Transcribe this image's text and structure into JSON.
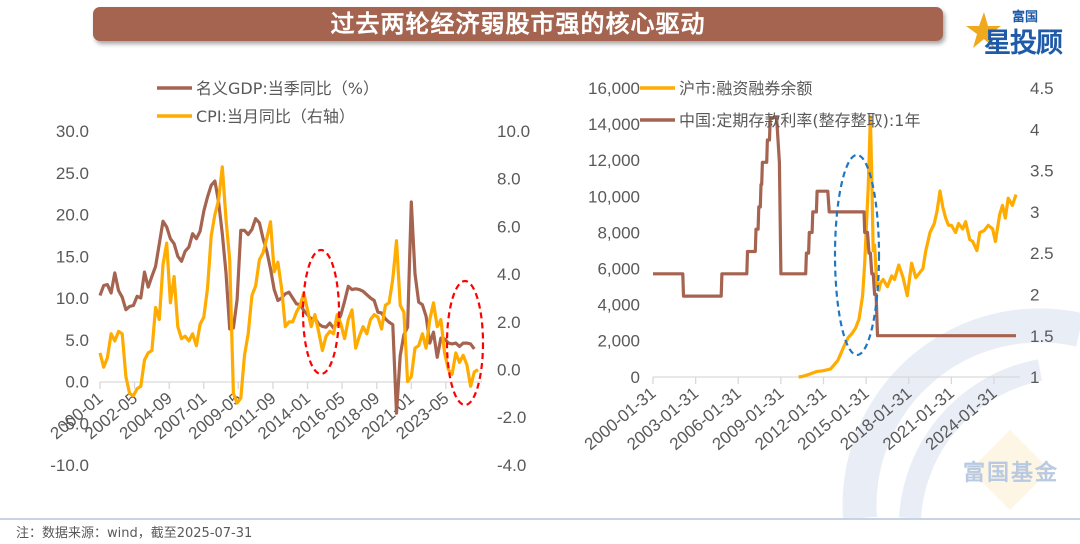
{
  "header": {
    "title": "过去两轮经济弱股市强的核心驱动",
    "logo_top": "富国",
    "logo_main": "星投顾",
    "title_bar_color": "#a5644f"
  },
  "footer": {
    "note": "注：数据来源：wind，截至2025-07-31"
  },
  "watermark": {
    "text": "富国基金"
  },
  "colors": {
    "brown": "#a5644f",
    "orange": "#ffab00",
    "red_ellipse": "#ff0000",
    "blue_ellipse": "#1f77c4",
    "axis_text": "#595959",
    "grid": "#d9d9d9"
  },
  "chart_data": [
    {
      "type": "line",
      "title": "",
      "legend": [
        "名义GDP:当季同比（%）",
        "CPI:当月同比（右轴）"
      ],
      "legend_position": "top",
      "xlabel": "",
      "ylabel": "",
      "x_tick_labels": [
        "2000-01",
        "2002-05",
        "2004-09",
        "2007-01",
        "2009-05",
        "2011-09",
        "2014-01",
        "2016-05",
        "2018-09",
        "2021-01",
        "2023-05"
      ],
      "y_left_ticks": [
        "30.0",
        "25.0",
        "20.0",
        "15.0",
        "10.0",
        "5.0",
        "0.0",
        "-5.0",
        "-10.0"
      ],
      "y_right_ticks": [
        "10.0",
        "8.0",
        "6.0",
        "4.0",
        "2.0",
        "0.0",
        "-2.0",
        "-4.0"
      ],
      "ylim_left": [
        -10,
        30
      ],
      "ylim_right": [
        -4,
        10
      ],
      "annotations": [
        "red dashed ellipse around 2013-2015",
        "red dashed ellipse around 2023-2025"
      ],
      "series": [
        {
          "name": "名义GDP:当季同比（%）",
          "axis": "left",
          "color": "#a5644f",
          "x": [
            2000.0,
            2000.25,
            2000.5,
            2000.75,
            2001.0,
            2001.25,
            2001.5,
            2001.75,
            2002.0,
            2002.25,
            2002.5,
            2002.75,
            2003.0,
            2003.25,
            2003.5,
            2003.75,
            2004.0,
            2004.25,
            2004.5,
            2004.75,
            2005.0,
            2005.25,
            2005.5,
            2005.75,
            2006.0,
            2006.25,
            2006.5,
            2006.75,
            2007.0,
            2007.25,
            2007.5,
            2007.75,
            2008.0,
            2008.25,
            2008.5,
            2008.75,
            2009.0,
            2009.25,
            2009.5,
            2009.75,
            2010.0,
            2010.25,
            2010.5,
            2010.75,
            2011.0,
            2011.25,
            2011.5,
            2011.75,
            2012.0,
            2012.25,
            2012.5,
            2012.75,
            2013.0,
            2013.25,
            2013.5,
            2013.75,
            2014.0,
            2014.25,
            2014.5,
            2014.75,
            2015.0,
            2015.25,
            2015.5,
            2015.75,
            2016.0,
            2016.25,
            2016.5,
            2016.75,
            2017.0,
            2017.25,
            2017.5,
            2017.75,
            2018.0,
            2018.25,
            2018.5,
            2018.75,
            2019.0,
            2019.25,
            2019.5,
            2019.75,
            2020.0,
            2020.25,
            2020.5,
            2020.75,
            2021.0,
            2021.25,
            2021.5,
            2021.75,
            2022.0,
            2022.25,
            2022.5,
            2022.75,
            2023.0,
            2023.25,
            2023.5,
            2023.75,
            2024.0,
            2024.25,
            2024.5,
            2024.75,
            2025.0,
            2025.25
          ],
          "values": [
            10.3,
            11.5,
            11.6,
            10.6,
            13.0,
            10.9,
            10.1,
            8.6,
            9.0,
            9.1,
            10.2,
            10.0,
            13.1,
            11.3,
            12.6,
            13.8,
            16.5,
            19.2,
            18.5,
            17.1,
            16.5,
            15.0,
            14.4,
            15.6,
            16.1,
            17.7,
            17.1,
            18.0,
            20.4,
            22.1,
            23.5,
            24.0,
            21.5,
            17.7,
            13.0,
            6.3,
            6.4,
            9.8,
            18.1,
            18.1,
            17.6,
            18.2,
            19.5,
            19.0,
            17.1,
            15.6,
            13.5,
            11.0,
            9.7,
            10.0,
            10.5,
            10.7,
            10.0,
            9.3,
            9.2,
            8.5,
            8.0,
            7.5,
            7.6,
            6.9,
            6.6,
            6.5,
            7.0,
            6.4,
            7.0,
            8.0,
            9.6,
            11.4,
            11.0,
            11.1,
            11.0,
            10.8,
            10.4,
            10.0,
            9.7,
            8.3,
            8.2,
            7.5,
            7.1,
            6.8,
            -3.8,
            3.1,
            5.6,
            6.5,
            21.5,
            12.9,
            9.5,
            9.2,
            7.8,
            4.6,
            5.9,
            2.9,
            5.2,
            5.1,
            4.6,
            4.5,
            4.6,
            4.2,
            4.6,
            4.6,
            4.5,
            3.9
          ]
        },
        {
          "name": "CPI:当月同比（右轴）",
          "axis": "right",
          "color": "#ffab00",
          "x": [
            2000.0,
            2000.25,
            2000.5,
            2000.75,
            2001.0,
            2001.25,
            2001.5,
            2001.75,
            2002.0,
            2002.25,
            2002.5,
            2002.75,
            2003.0,
            2003.25,
            2003.5,
            2003.75,
            2004.0,
            2004.25,
            2004.5,
            2004.75,
            2005.0,
            2005.25,
            2005.5,
            2005.75,
            2006.0,
            2006.25,
            2006.5,
            2006.75,
            2007.0,
            2007.25,
            2007.5,
            2007.75,
            2008.0,
            2008.25,
            2008.5,
            2008.75,
            2009.0,
            2009.25,
            2009.5,
            2009.75,
            2010.0,
            2010.25,
            2010.5,
            2010.75,
            2011.0,
            2011.25,
            2011.5,
            2011.75,
            2012.0,
            2012.25,
            2012.5,
            2012.75,
            2013.0,
            2013.25,
            2013.5,
            2013.75,
            2014.0,
            2014.25,
            2014.5,
            2014.75,
            2015.0,
            2015.25,
            2015.5,
            2015.75,
            2016.0,
            2016.25,
            2016.5,
            2016.75,
            2017.0,
            2017.25,
            2017.5,
            2017.75,
            2018.0,
            2018.25,
            2018.5,
            2018.75,
            2019.0,
            2019.25,
            2019.5,
            2019.75,
            2020.0,
            2020.25,
            2020.5,
            2020.75,
            2021.0,
            2021.25,
            2021.5,
            2021.75,
            2022.0,
            2022.25,
            2022.5,
            2022.75,
            2023.0,
            2023.25,
            2023.5,
            2023.75,
            2024.0,
            2024.25,
            2024.5,
            2024.75,
            2025.0,
            2025.25,
            2025.5
          ],
          "values": [
            0.7,
            0.1,
            0.5,
            1.5,
            1.2,
            1.6,
            1.5,
            -0.3,
            -1.0,
            -1.1,
            -0.8,
            -0.7,
            0.4,
            0.7,
            0.8,
            2.6,
            2.1,
            4.4,
            5.3,
            2.8,
            3.9,
            1.8,
            1.3,
            1.4,
            1.2,
            1.5,
            1.0,
            1.9,
            2.2,
            3.4,
            5.6,
            6.5,
            7.1,
            8.5,
            6.3,
            4.6,
            -1.0,
            -1.4,
            -1.2,
            0.6,
            1.5,
            3.1,
            3.5,
            4.6,
            4.9,
            5.5,
            6.2,
            4.1,
            4.5,
            3.4,
            1.8,
            2.0,
            2.0,
            2.4,
            2.7,
            3.2,
            2.5,
            1.8,
            2.3,
            1.6,
            0.8,
            1.4,
            1.6,
            1.5,
            2.3,
            1.9,
            1.3,
            2.1,
            2.5,
            0.9,
            1.4,
            1.8,
            1.5,
            2.1,
            2.3,
            2.2,
            1.7,
            2.7,
            2.8,
            3.8,
            5.4,
            2.7,
            2.4,
            -0.5,
            -0.3,
            0.9,
            1.0,
            1.5,
            0.9,
            2.1,
            2.8,
            1.8,
            2.1,
            0.7,
            0.0,
            -0.2,
            0.7,
            0.3,
            0.6,
            0.2,
            -0.7,
            -0.1,
            0.0
          ]
        }
      ]
    },
    {
      "type": "line",
      "title": "",
      "legend": [
        "沪市:融资融券余额",
        "中国:定期存款利率(整存整取):1年"
      ],
      "legend_position": "top",
      "xlabel": "",
      "ylabel": "",
      "x_tick_labels": [
        "2000-01-31",
        "2003-01-31",
        "2006-01-31",
        "2009-01-31",
        "2012-01-31",
        "2015-01-31",
        "2018-01-31",
        "2021-01-31",
        "2024-01-31"
      ],
      "y_left_ticks": [
        "16,000",
        "14,000",
        "12,000",
        "10,000",
        "8,000",
        "6,000",
        "4,000",
        "2,000",
        "0"
      ],
      "y_right_ticks": [
        "4.5",
        "4",
        "3.5",
        "3",
        "2.5",
        "2",
        "1.5",
        "1"
      ],
      "ylim_left": [
        0,
        16000
      ],
      "ylim_right": [
        1,
        4.5
      ],
      "annotations": [
        "blue dashed ellipse around 2014-2015"
      ],
      "series": [
        {
          "name": "沪市:融资融券余额",
          "axis": "left",
          "color": "#ffab00",
          "x": [
            2010.25,
            2010.5,
            2011.0,
            2011.5,
            2012.0,
            2012.5,
            2013.0,
            2013.5,
            2013.75,
            2014.0,
            2014.25,
            2014.5,
            2014.75,
            2014.9,
            2015.0,
            2015.15,
            2015.3,
            2015.4,
            2015.45,
            2015.5,
            2015.6,
            2015.7,
            2015.8,
            2015.9,
            2016.0,
            2016.2,
            2016.5,
            2016.8,
            2017.0,
            2017.3,
            2017.6,
            2017.9,
            2018.2,
            2018.5,
            2018.8,
            2019.0,
            2019.2,
            2019.5,
            2019.8,
            2020.0,
            2020.2,
            2020.4,
            2020.6,
            2020.8,
            2021.0,
            2021.3,
            2021.5,
            2021.8,
            2022.0,
            2022.3,
            2022.5,
            2022.8,
            2023.0,
            2023.3,
            2023.6,
            2023.9,
            2024.1,
            2024.4,
            2024.6,
            2024.8,
            2025.0,
            2025.3,
            2025.55
          ],
          "values": [
            0,
            30,
            150,
            300,
            350,
            450,
            900,
            1800,
            2200,
            2400,
            2700,
            3200,
            4500,
            6300,
            8000,
            10500,
            14400,
            11000,
            9000,
            7000,
            7300,
            5800,
            5000,
            4800,
            5200,
            5400,
            5000,
            5600,
            5400,
            6200,
            5500,
            4500,
            6300,
            5500,
            5800,
            6000,
            7000,
            8000,
            8500,
            9200,
            10300,
            9400,
            8800,
            8400,
            8400,
            8000,
            8500,
            8200,
            8600,
            7600,
            7500,
            7000,
            8000,
            8100,
            8400,
            8200,
            7500,
            9000,
            9500,
            8800,
            9900,
            9500,
            10100
          ]
        },
        {
          "name": "中国:定期存款利率(整存整取):1年",
          "axis": "right",
          "color": "#a5644f",
          "x": [
            2000.0,
            2002.1,
            2002.15,
            2004.8,
            2004.85,
            2006.6,
            2006.65,
            2007.2,
            2007.25,
            2007.4,
            2007.45,
            2007.55,
            2007.6,
            2007.65,
            2007.7,
            2008.0,
            2008.05,
            2008.2,
            2008.25,
            2008.7,
            2008.8,
            2008.9,
            2009.0,
            2010.75,
            2010.8,
            2010.95,
            2011.0,
            2011.2,
            2011.25,
            2011.5,
            2011.55,
            2012.3,
            2012.4,
            2012.5,
            2012.55,
            2014.85,
            2014.9,
            2015.1,
            2015.2,
            2015.3,
            2015.4,
            2015.5,
            2015.6,
            2015.7,
            2015.8,
            2025.55
          ],
          "values": [
            2.25,
            2.25,
            1.98,
            1.98,
            2.25,
            2.25,
            2.52,
            2.52,
            2.79,
            2.79,
            3.06,
            3.06,
            3.33,
            3.33,
            3.6,
            3.6,
            3.87,
            3.87,
            4.14,
            4.14,
            3.87,
            3.6,
            2.25,
            2.25,
            2.5,
            2.5,
            2.75,
            2.75,
            3.0,
            3.0,
            3.25,
            3.25,
            3.0,
            3.0,
            3.0,
            3.0,
            2.75,
            2.75,
            2.5,
            2.5,
            2.25,
            2.25,
            2.0,
            2.0,
            1.5,
            1.5
          ]
        }
      ]
    }
  ]
}
